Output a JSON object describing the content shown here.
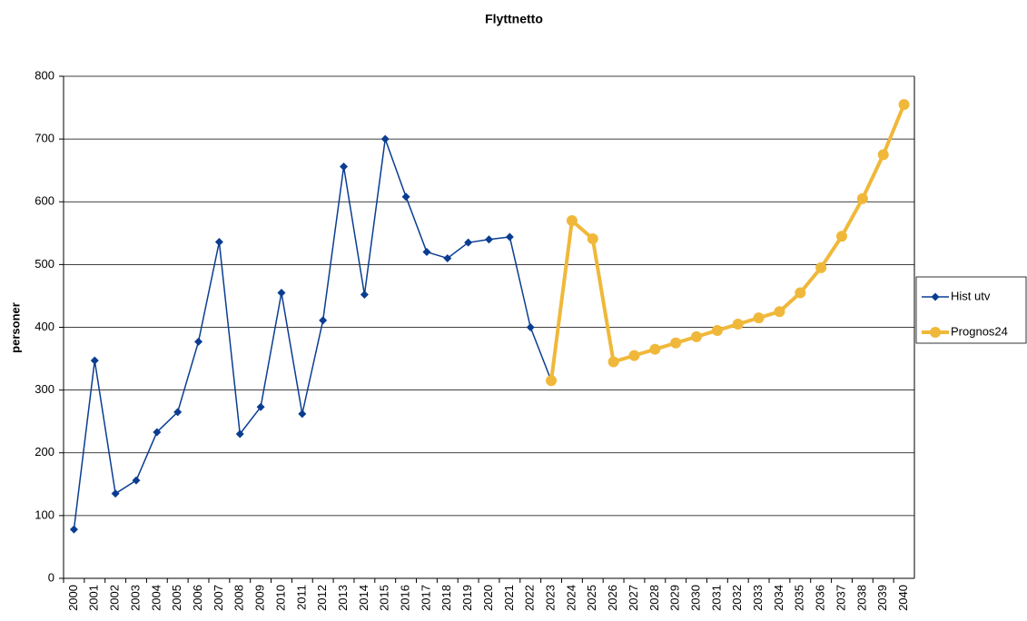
{
  "chart_data": {
    "type": "line",
    "title": "Flyttnetto",
    "y_label": "personer",
    "categories": [
      "2000",
      "2001",
      "2002",
      "2003",
      "2004",
      "2005",
      "2006",
      "2007",
      "2008",
      "2009",
      "2010",
      "2011",
      "2012",
      "2013",
      "2014",
      "2015",
      "2016",
      "2017",
      "2018",
      "2019",
      "2020",
      "2021",
      "2022",
      "2023",
      "2024",
      "2025",
      "2026",
      "2027",
      "2028",
      "2029",
      "2030",
      "2031",
      "2032",
      "2033",
      "2034",
      "2035",
      "2036",
      "2037",
      "2038",
      "2039",
      "2040"
    ],
    "series": [
      {
        "name": "Hist utv",
        "color": "#0a3d91",
        "marker": "diamond",
        "values": [
          78,
          347,
          135,
          156,
          233,
          265,
          377,
          536,
          230,
          273,
          455,
          262,
          411,
          656,
          452,
          700,
          608,
          520,
          510,
          535,
          540,
          544,
          400,
          315,
          null,
          null,
          null,
          null,
          null,
          null,
          null,
          null,
          null,
          null,
          null,
          null,
          null,
          null,
          null,
          null,
          null
        ]
      },
      {
        "name": "Prognos24",
        "color": "#f0b83a",
        "marker": "circle",
        "values": [
          null,
          null,
          null,
          null,
          null,
          null,
          null,
          null,
          null,
          null,
          null,
          null,
          null,
          null,
          null,
          null,
          null,
          null,
          null,
          null,
          null,
          null,
          null,
          315,
          570,
          541,
          345,
          355,
          365,
          375,
          385,
          395,
          405,
          415,
          425,
          455,
          495,
          545,
          605,
          675,
          755
        ]
      }
    ],
    "ylim": [
      0,
      800
    ],
    "yticks": [
      0,
      100,
      200,
      300,
      400,
      500,
      600,
      700,
      800
    ],
    "grid": true,
    "legend": "right"
  }
}
